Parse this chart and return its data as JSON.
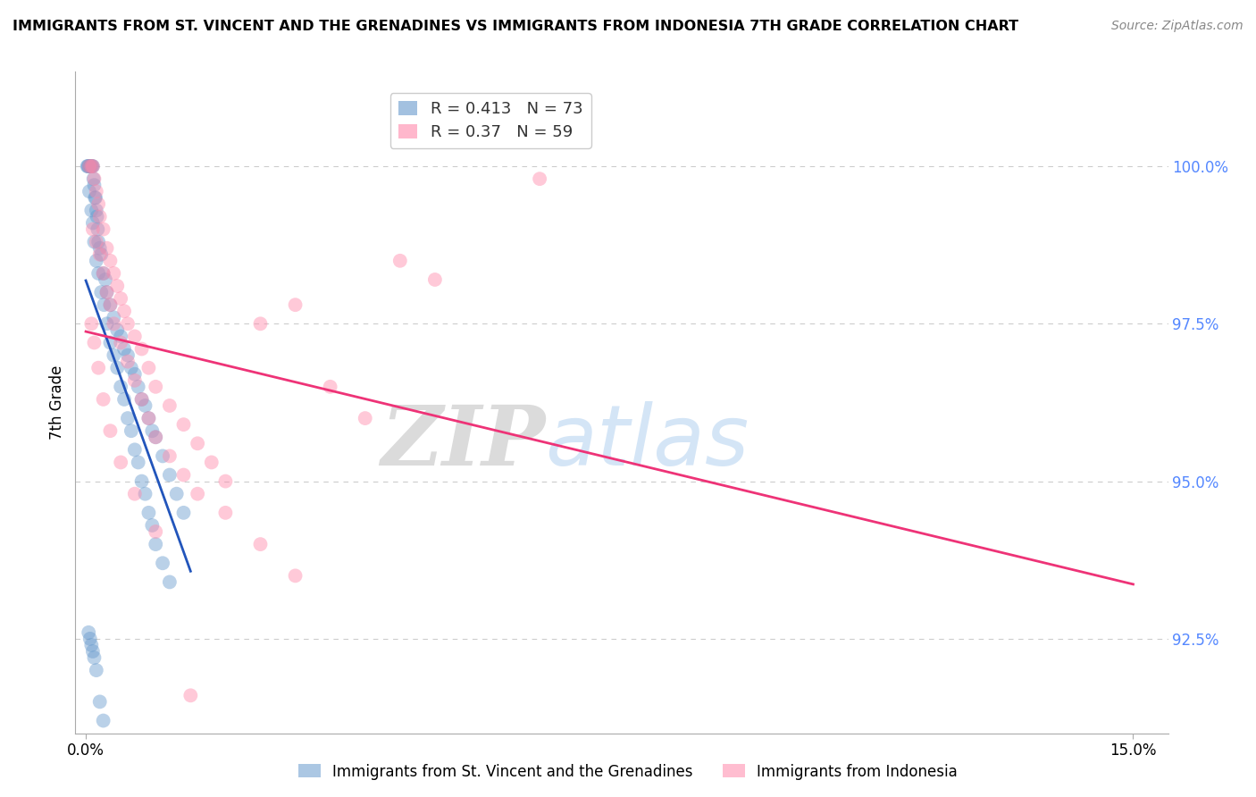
{
  "title": "IMMIGRANTS FROM ST. VINCENT AND THE GRENADINES VS IMMIGRANTS FROM INDONESIA 7TH GRADE CORRELATION CHART",
  "source": "Source: ZipAtlas.com",
  "ylabel": "7th Grade",
  "xlim": [
    -0.15,
    15.5
  ],
  "ylim": [
    91.0,
    101.5
  ],
  "yticks": [
    92.5,
    95.0,
    97.5,
    100.0
  ],
  "ytick_labels": [
    "92.5%",
    "95.0%",
    "97.5%",
    "100.0%"
  ],
  "xtick_labels": [
    "0.0%",
    "15.0%"
  ],
  "blue_color": "#6699CC",
  "pink_color": "#FF88AA",
  "blue_line_color": "#2255BB",
  "pink_line_color": "#EE3377",
  "legend_blue_label": "Immigrants from St. Vincent and the Grenadines",
  "legend_pink_label": "Immigrants from Indonesia",
  "R_blue": 0.413,
  "N_blue": 73,
  "R_pink": 0.37,
  "N_pink": 59,
  "blue_x": [
    0.02,
    0.03,
    0.04,
    0.05,
    0.06,
    0.07,
    0.08,
    0.09,
    0.1,
    0.11,
    0.12,
    0.13,
    0.14,
    0.15,
    0.16,
    0.17,
    0.18,
    0.2,
    0.22,
    0.25,
    0.28,
    0.3,
    0.35,
    0.4,
    0.45,
    0.5,
    0.55,
    0.6,
    0.65,
    0.7,
    0.75,
    0.8,
    0.85,
    0.9,
    0.95,
    1.0,
    1.1,
    1.2,
    1.3,
    1.4,
    0.05,
    0.08,
    0.1,
    0.12,
    0.15,
    0.18,
    0.22,
    0.26,
    0.3,
    0.35,
    0.4,
    0.45,
    0.5,
    0.55,
    0.6,
    0.65,
    0.7,
    0.75,
    0.8,
    0.85,
    0.9,
    0.95,
    1.0,
    1.1,
    1.2,
    0.04,
    0.06,
    0.08,
    0.1,
    0.12,
    0.15,
    0.2,
    0.25
  ],
  "blue_y": [
    100.0,
    100.0,
    100.0,
    100.0,
    100.0,
    100.0,
    100.0,
    100.0,
    100.0,
    99.8,
    99.7,
    99.5,
    99.5,
    99.3,
    99.2,
    99.0,
    98.8,
    98.7,
    98.6,
    98.3,
    98.2,
    98.0,
    97.8,
    97.6,
    97.4,
    97.3,
    97.1,
    97.0,
    96.8,
    96.7,
    96.5,
    96.3,
    96.2,
    96.0,
    95.8,
    95.7,
    95.4,
    95.1,
    94.8,
    94.5,
    99.6,
    99.3,
    99.1,
    98.8,
    98.5,
    98.3,
    98.0,
    97.8,
    97.5,
    97.2,
    97.0,
    96.8,
    96.5,
    96.3,
    96.0,
    95.8,
    95.5,
    95.3,
    95.0,
    94.8,
    94.5,
    94.3,
    94.0,
    93.7,
    93.4,
    92.6,
    92.5,
    92.4,
    92.3,
    92.2,
    92.0,
    91.5,
    91.2
  ],
  "pink_x": [
    0.05,
    0.08,
    0.1,
    0.12,
    0.15,
    0.18,
    0.2,
    0.25,
    0.3,
    0.35,
    0.4,
    0.45,
    0.5,
    0.55,
    0.6,
    0.7,
    0.8,
    0.9,
    1.0,
    1.2,
    1.4,
    1.6,
    1.8,
    2.0,
    2.5,
    3.0,
    3.5,
    4.0,
    5.0,
    6.5,
    0.1,
    0.15,
    0.2,
    0.25,
    0.3,
    0.35,
    0.4,
    0.5,
    0.6,
    0.7,
    0.8,
    0.9,
    1.0,
    1.2,
    1.4,
    1.6,
    2.0,
    2.5,
    3.0,
    4.5,
    0.08,
    0.12,
    0.18,
    0.25,
    0.35,
    0.5,
    0.7,
    1.0,
    1.5
  ],
  "pink_y": [
    100.0,
    100.0,
    100.0,
    99.8,
    99.6,
    99.4,
    99.2,
    99.0,
    98.7,
    98.5,
    98.3,
    98.1,
    97.9,
    97.7,
    97.5,
    97.3,
    97.1,
    96.8,
    96.5,
    96.2,
    95.9,
    95.6,
    95.3,
    95.0,
    97.5,
    97.8,
    96.5,
    96.0,
    98.2,
    99.8,
    99.0,
    98.8,
    98.6,
    98.3,
    98.0,
    97.8,
    97.5,
    97.2,
    96.9,
    96.6,
    96.3,
    96.0,
    95.7,
    95.4,
    95.1,
    94.8,
    94.5,
    94.0,
    93.5,
    98.5,
    97.5,
    97.2,
    96.8,
    96.3,
    95.8,
    95.3,
    94.8,
    94.2,
    91.6
  ],
  "watermark_zip": "ZIP",
  "watermark_atlas": "atlas",
  "background_color": "#ffffff",
  "grid_color": "#cccccc"
}
